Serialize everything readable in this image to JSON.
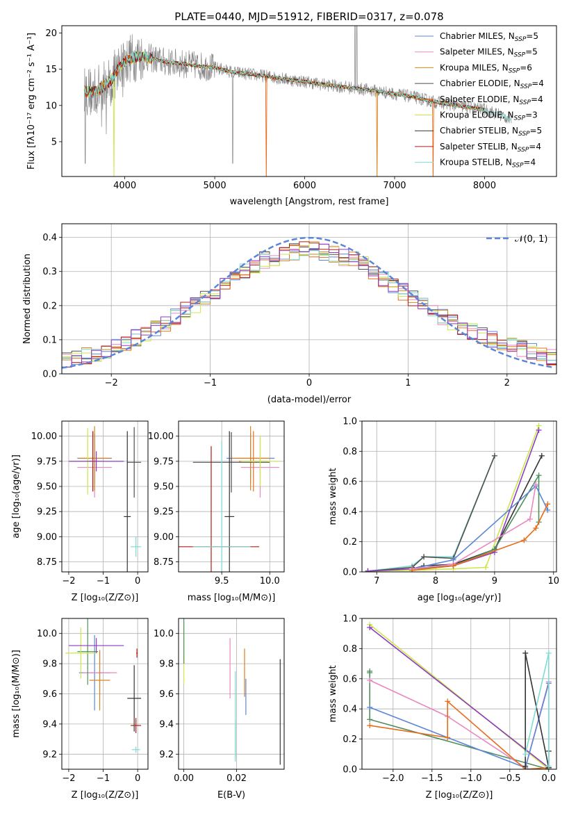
{
  "figure_title": "PLATE=0440, MJD=51912, FIBERID=0317, z=0.078",
  "colors": {
    "Chabrier MILES": "#5b86d8",
    "Salpeter MILES": "#e987c0",
    "Kroupa MILES": "#d8831c",
    "Chabrier ELODIE": "#4e4e4e",
    "Salpeter ELODIE": "#e86c1c",
    "Kroupa ELODIE": "#c9e84a",
    "Chabrier STELIB": "#333333",
    "Salpeter STELIB": "#b51a14",
    "Kroupa STELIB": "#7fdcd4",
    "extra_purple": "#8e3bbf",
    "extra_green": "#4f8f5b",
    "data_grey": "#888888",
    "normal_curve": "#5b86d8"
  },
  "chart_data": [
    {
      "type": "line",
      "title": "PLATE=0440, MJD=51912, FIBERID=0317, z=0.078",
      "xlabel": "wavelength [Angstrom, rest frame]",
      "ylabel": "Flux [fλ10⁻¹⁷ erg cm⁻² s⁻¹ A⁻¹]",
      "xlim": [
        3300,
        8800
      ],
      "ylim": [
        0.2,
        21
      ],
      "xticks": [
        "4000",
        "5000",
        "6000",
        "7000",
        "8000"
      ],
      "xtick_values": [
        4000,
        5000,
        6000,
        7000,
        8000
      ],
      "yticks": [
        "5",
        "10",
        "15",
        "20"
      ],
      "ytick_values": [
        5,
        10,
        15,
        20
      ],
      "grid": false,
      "legend_position": "upper-right",
      "series": [
        {
          "name": "Chabrier MILES, N_SSP=5",
          "legend_main": "Chabrier MILES, N",
          "legend_sub": "SSP",
          "legend_tail": "=5"
        },
        {
          "name": "Salpeter MILES, N_SSP=5",
          "legend_main": "Salpeter MILES, N",
          "legend_sub": "SSP",
          "legend_tail": "=5"
        },
        {
          "name": "Kroupa MILES, N_SSP=6",
          "legend_main": "Kroupa MILES, N",
          "legend_sub": "SSP",
          "legend_tail": "=6"
        },
        {
          "name": "Chabrier ELODIE, N_SSP=4",
          "legend_main": "Chabrier ELODIE, N",
          "legend_sub": "SSP",
          "legend_tail": "=4"
        },
        {
          "name": "Salpeter ELODIE, N_SSP=4",
          "legend_main": "Salpeter ELODIE, N",
          "legend_sub": "SSP",
          "legend_tail": "=4"
        },
        {
          "name": "Kroupa ELODIE, N_SSP=3",
          "legend_main": "Kroupa ELODIE, N",
          "legend_sub": "SSP",
          "legend_tail": "=3"
        },
        {
          "name": "Chabrier STELIB, N_SSP=5",
          "legend_main": "Chabrier STELIB, N",
          "legend_sub": "SSP",
          "legend_tail": "=5"
        },
        {
          "name": "Salpeter STELIB, N_SSP=4",
          "legend_main": "Salpeter STELIB, N",
          "legend_sub": "SSP",
          "legend_tail": "=4"
        },
        {
          "name": "Kroupa STELIB, N_SSP=4",
          "legend_main": "Kroupa STELIB, N",
          "legend_sub": "SSP",
          "legend_tail": "=4"
        }
      ],
      "model_continuum": {
        "x": [
          3550,
          3650,
          3750,
          3850,
          3950,
          4050,
          4150,
          4300,
          4450,
          4600,
          4800,
          5000,
          5200,
          5400,
          5600,
          5800,
          6000,
          6200,
          6400,
          6600,
          6800,
          7000,
          7200,
          7400,
          7600,
          7800,
          8000,
          8200,
          8300
        ],
        "y": [
          12.0,
          11.8,
          12.5,
          13.5,
          15.5,
          16.5,
          16.8,
          16.5,
          16.0,
          15.8,
          15.5,
          15.2,
          14.6,
          14.3,
          14.0,
          13.6,
          13.3,
          12.9,
          12.6,
          12.3,
          12.0,
          11.6,
          11.2,
          10.6,
          10.2,
          9.8,
          9.4,
          8.6,
          8.0
        ]
      }
    },
    {
      "type": "line",
      "xlabel": "(data-model)/error",
      "ylabel": "Normed distribution",
      "xlim": [
        -2.5,
        2.5
      ],
      "ylim": [
        0,
        0.44
      ],
      "xticks": [
        "−2",
        "−1",
        "0",
        "1",
        "2"
      ],
      "xtick_values": [
        -2,
        -1,
        0,
        1,
        2
      ],
      "yticks": [
        "0.0",
        "0.1",
        "0.2",
        "0.3",
        "0.4"
      ],
      "ytick_values": [
        0,
        0.1,
        0.2,
        0.3,
        0.4
      ],
      "grid": true,
      "legend_position": "upper-right",
      "legend_label": "𝒩(0, 1)",
      "normal_curve": {
        "mu": 0,
        "sigma": 1
      },
      "histogram_bin_width": 0.1,
      "histogram_shape_x": [
        -2.5,
        -2.0,
        -1.5,
        -1.0,
        -0.5,
        0.0,
        0.5,
        1.0,
        1.5,
        2.0,
        2.5
      ],
      "histogram_shape_y": [
        0.035,
        0.07,
        0.14,
        0.23,
        0.33,
        0.37,
        0.33,
        0.23,
        0.14,
        0.085,
        0.045
      ]
    },
    {
      "type": "scatter",
      "xlabel": "Z [log₁₀(Z/Z⊙)]",
      "ylabel": "age  [log₁₀(age/yr)]",
      "xlim": [
        -2.2,
        0.3
      ],
      "ylim": [
        8.65,
        10.15
      ],
      "xticks": [
        "−2",
        "−1",
        "0"
      ],
      "xtick_values": [
        -2,
        -1,
        0
      ],
      "yticks": [
        "8.75",
        "9.00",
        "9.25",
        "9.50",
        "9.75",
        "10.00"
      ],
      "ytick_values": [
        8.75,
        9.0,
        9.25,
        9.5,
        9.75,
        10.0
      ],
      "grid": true,
      "points": [
        {
          "model": "Chabrier MILES",
          "x": -1.25,
          "xerr": 0.5,
          "y": 9.78,
          "yerr": 0.25
        },
        {
          "model": "Salpeter MILES",
          "x": -1.25,
          "xerr": 0.5,
          "y": 9.69,
          "yerr": 0.3
        },
        {
          "model": "Kroupa MILES",
          "x": -1.25,
          "xerr": 0.45,
          "y": 9.78,
          "yerr": 0.32
        },
        {
          "model": "Chabrier ELODIE",
          "x": -0.1,
          "xerr": 0.2,
          "y": 9.74,
          "yerr": 0.35
        },
        {
          "model": "Salpeter ELODIE",
          "x": -1.3,
          "xerr": 0.2,
          "y": 9.75,
          "yerr": 0.3
        },
        {
          "model": "Kroupa ELODIE",
          "x": -1.45,
          "xerr": 0.5,
          "y": 9.75,
          "yerr": 0.33
        },
        {
          "model": "Chabrier STELIB",
          "x": -0.3,
          "xerr": 0.1,
          "y": 9.2,
          "yerr": 0.85
        },
        {
          "model": "Salpeter STELIB",
          "x": -1.3,
          "xerr": 0.1,
          "y": 9.75,
          "yerr": 0.3
        },
        {
          "model": "Kroupa STELIB",
          "x": -0.05,
          "xerr": 0.15,
          "y": 8.9,
          "yerr": 0.1
        },
        {
          "model": "extra_purple",
          "x": -1.2,
          "xerr": 0.8,
          "y": 9.75,
          "yerr": 0.1
        }
      ]
    },
    {
      "type": "scatter",
      "xlabel": "mass [log₁₀(M/M⊙)]",
      "ylabel": "",
      "xlim": [
        9.05,
        10.15
      ],
      "ylim": [
        8.65,
        10.15
      ],
      "xticks": [
        "9.5",
        "10.0"
      ],
      "xtick_values": [
        9.5,
        10.0
      ],
      "yticks": [
        "8.75",
        "9.00",
        "9.25",
        "9.50",
        "9.75",
        "10.00"
      ],
      "ytick_values": [
        8.75,
        9.0,
        9.25,
        9.5,
        9.75,
        10.0
      ],
      "grid": true,
      "points": [
        {
          "model": "Chabrier MILES",
          "x": 9.8,
          "xerr": 0.25,
          "y": 9.78,
          "yerr": 0.25
        },
        {
          "model": "Salpeter MILES",
          "x": 9.9,
          "xerr": 0.2,
          "y": 9.69,
          "yerr": 0.3
        },
        {
          "model": "Kroupa MILES",
          "x": 9.8,
          "xerr": 0.2,
          "y": 9.78,
          "yerr": 0.32
        },
        {
          "model": "Chabrier ELODIE",
          "x": 9.6,
          "xerr": 0.4,
          "y": 9.74,
          "yerr": 0.3
        },
        {
          "model": "Salpeter ELODIE",
          "x": 9.83,
          "xerr": 0.15,
          "y": 9.75,
          "yerr": 0.3
        },
        {
          "model": "Kroupa ELODIE",
          "x": 9.9,
          "xerr": 0.2,
          "y": 9.75,
          "yerr": 0.25
        },
        {
          "model": "Chabrier STELIB",
          "x": 9.58,
          "xerr": 0.05,
          "y": 9.2,
          "yerr": 0.85
        },
        {
          "model": "Salpeter STELIB",
          "x": 9.39,
          "xerr": 0.5,
          "y": 8.9,
          "yerr": 1.0
        },
        {
          "model": "Kroupa STELIB",
          "x": 9.5,
          "xerr": 0.3,
          "y": 8.9,
          "yerr": 1.05
        }
      ]
    },
    {
      "type": "line",
      "xlabel": "age  [log₁₀(age/yr)]",
      "ylabel": "mass weight",
      "xlim": [
        6.75,
        10.05
      ],
      "ylim": [
        0,
        1.0
      ],
      "xticks": [
        "7",
        "8",
        "9",
        "10"
      ],
      "xtick_values": [
        7,
        8,
        9,
        10
      ],
      "yticks": [
        "0.0",
        "0.2",
        "0.4",
        "0.6",
        "0.8",
        "1.0"
      ],
      "ytick_values": [
        0,
        0.2,
        0.4,
        0.6,
        0.8,
        1.0
      ],
      "grid": true,
      "series": [
        {
          "model": "Kroupa STELIB",
          "x": [
            6.85,
            7.6,
            7.8,
            8.3,
            9.0
          ],
          "y": [
            0.005,
            0.04,
            0.1,
            0.1,
            0.77
          ]
        },
        {
          "model": "Chabrier ELODIE",
          "x": [
            6.85,
            7.6,
            7.8,
            8.3,
            9.0
          ],
          "y": [
            0.005,
            0.03,
            0.1,
            0.09,
            0.77
          ]
        },
        {
          "model": "Kroupa ELODIE",
          "x": [
            6.85,
            7.6,
            8.3,
            8.85,
            9.75
          ],
          "y": [
            0.005,
            0.01,
            0.02,
            0.03,
            0.97
          ]
        },
        {
          "model": "extra_purple",
          "x": [
            6.85,
            7.6,
            8.3,
            9.0,
            9.75
          ],
          "y": [
            0.005,
            0.02,
            0.04,
            0.13,
            0.94
          ]
        },
        {
          "model": "Chabrier STELIB",
          "x": [
            7.6,
            7.8,
            8.3,
            9.0,
            9.8
          ],
          "y": [
            0.02,
            0.04,
            0.05,
            0.15,
            0.77
          ]
        },
        {
          "model": "extra_green",
          "x": [
            7.6,
            8.3,
            9.0,
            9.75,
            9.75
          ],
          "y": [
            0.02,
            0.04,
            0.15,
            0.64,
            0.33
          ]
        },
        {
          "model": "Chabrier MILES",
          "x": [
            7.6,
            8.3,
            9.7,
            9.9
          ],
          "y": [
            0.02,
            0.08,
            0.57,
            0.41
          ]
        },
        {
          "model": "Salpeter MILES",
          "x": [
            7.6,
            8.3,
            9.6,
            9.7
          ],
          "y": [
            0.02,
            0.05,
            0.35,
            0.58
          ]
        },
        {
          "model": "Salpeter ELODIE",
          "x": [
            7.6,
            8.3,
            9.5,
            9.7,
            9.9
          ],
          "y": [
            0.01,
            0.04,
            0.21,
            0.29,
            0.45
          ]
        }
      ]
    },
    {
      "type": "scatter",
      "xlabel": "Z [log₁₀(Z/Z⊙)]",
      "ylabel": "mass [log₁₀(M/M⊙)]",
      "xlim": [
        -2.2,
        0.3
      ],
      "ylim": [
        9.1,
        10.1
      ],
      "xticks": [
        "−2",
        "−1",
        "0"
      ],
      "xtick_values": [
        -2,
        -1,
        0
      ],
      "yticks": [
        "9.2",
        "9.4",
        "9.6",
        "9.8",
        "10.0"
      ],
      "ytick_values": [
        9.2,
        9.4,
        9.6,
        9.8,
        10.0
      ],
      "grid": true,
      "points": [
        {
          "model": "Chabrier MILES",
          "x": -1.25,
          "xerr": 0.45,
          "y": 9.74,
          "yerr": 0.25
        },
        {
          "model": "Salpeter MILES",
          "x": -1.1,
          "xerr": 0.5,
          "y": 9.74,
          "yerr": 0.15
        },
        {
          "model": "Kroupa MILES",
          "x": -1.1,
          "xerr": 0.3,
          "y": 9.69,
          "yerr": 0.2
        },
        {
          "model": "extra_green",
          "x": -1.45,
          "xerr": 0.3,
          "y": 9.88,
          "yerr": 0.22
        },
        {
          "model": "Kroupa ELODIE",
          "x": -1.65,
          "xerr": 0.45,
          "y": 9.87,
          "yerr": 0.17
        },
        {
          "model": "extra_purple",
          "x": -1.2,
          "xerr": 0.8,
          "y": 9.92,
          "yerr": 0.05
        },
        {
          "model": "Chabrier STELIB",
          "x": -0.1,
          "xerr": 0.2,
          "y": 9.57,
          "yerr": 0.22
        },
        {
          "model": "Salpeter STELIB",
          "x": -0.05,
          "xerr": 0.15,
          "y": 9.39,
          "yerr": 0.05
        },
        {
          "model": "Salpeter STELIB",
          "x": -0.02,
          "xerr": 0.02,
          "y": 9.87,
          "yerr": 0.03
        },
        {
          "model": "Kroupa STELIB",
          "x": -0.05,
          "xerr": 0.12,
          "y": 9.23,
          "yerr": 0.02
        }
      ]
    },
    {
      "type": "scatter",
      "xlabel": "E(B-V)",
      "ylabel": "",
      "xlim": [
        -0.002,
        0.038
      ],
      "ylim": [
        9.1,
        10.1
      ],
      "xticks": [
        "0.00",
        "0.02"
      ],
      "xtick_values": [
        0.0,
        0.02
      ],
      "yticks": [
        "9.2",
        "9.4",
        "9.6",
        "9.8",
        "10.0"
      ],
      "ytick_values": [
        9.2,
        9.4,
        9.6,
        9.8,
        10.0
      ],
      "grid": true,
      "points": [
        {
          "model": "Kroupa ELODIE",
          "x": 0.0,
          "y": 9.87,
          "yerr": 0.2
        },
        {
          "model": "extra_green",
          "x": 0.0,
          "y": 9.95,
          "yerr": 0.15
        },
        {
          "model": "Salpeter MILES",
          "x": 0.0175,
          "y": 9.77,
          "yerr": 0.2
        },
        {
          "model": "Kroupa STELIB",
          "x": 0.0195,
          "y": 9.45,
          "yerr": 0.3
        },
        {
          "model": "Kroupa STELIB",
          "x": 0.0195,
          "y": 9.3,
          "yerr": 0.12
        },
        {
          "model": "Kroupa MILES",
          "x": 0.023,
          "y": 9.74,
          "yerr": 0.16
        },
        {
          "model": "Chabrier MILES",
          "x": 0.0235,
          "y": 9.58,
          "yerr": 0.12
        },
        {
          "model": "Chabrier STELIB",
          "x": 0.0365,
          "y": 9.48,
          "yerr": 0.35
        }
      ]
    },
    {
      "type": "line",
      "xlabel": "Z [log₁₀(Z/Z⊙)]",
      "ylabel": "mass weight",
      "xlim": [
        -2.4,
        0.1
      ],
      "ylim": [
        0,
        1.0
      ],
      "xticks": [
        "−2.0",
        "−1.5",
        "−1.0",
        "−0.5",
        "0.0"
      ],
      "xtick_values": [
        -2.0,
        -1.5,
        -1.0,
        -0.5,
        0.0
      ],
      "yticks": [
        "0.0",
        "0.2",
        "0.4",
        "0.6",
        "0.8",
        "1.0"
      ],
      "ytick_values": [
        0,
        0.2,
        0.4,
        0.6,
        0.8,
        1.0
      ],
      "grid": true,
      "series": [
        {
          "model": "Kroupa ELODIE",
          "x": [
            -2.3,
            0.0
          ],
          "y": [
            0.96,
            0.0
          ]
        },
        {
          "model": "extra_purple",
          "x": [
            -2.3,
            0.0
          ],
          "y": [
            0.94,
            0.01
          ]
        },
        {
          "model": "extra_green",
          "x": [
            -2.3,
            -2.3,
            -2.3,
            0.0
          ],
          "y": [
            0.65,
            0.64,
            0.33,
            0.0
          ]
        },
        {
          "model": "Salpeter MILES",
          "x": [
            -2.3,
            -1.3,
            -0.3,
            0.0
          ],
          "y": [
            0.59,
            0.35,
            0.01,
            0.58
          ]
        },
        {
          "model": "Chabrier MILES",
          "x": [
            -2.3,
            -0.3,
            0.0,
            0.0
          ],
          "y": [
            0.41,
            0.01,
            0.57,
            0.01
          ]
        },
        {
          "model": "Salpeter ELODIE",
          "x": [
            -2.3,
            -1.3,
            -1.3,
            -0.3,
            0.0
          ],
          "y": [
            0.29,
            0.21,
            0.45,
            0.0,
            0.01
          ]
        },
        {
          "model": "Chabrier STELIB",
          "x": [
            -0.3,
            -0.3,
            0.0,
            0.0
          ],
          "y": [
            0.02,
            0.77,
            0.01,
            0.12
          ]
        },
        {
          "model": "Kroupa STELIB",
          "x": [
            -0.3,
            0.0,
            0.0
          ],
          "y": [
            0.1,
            0.77,
            0.02
          ]
        }
      ]
    }
  ]
}
